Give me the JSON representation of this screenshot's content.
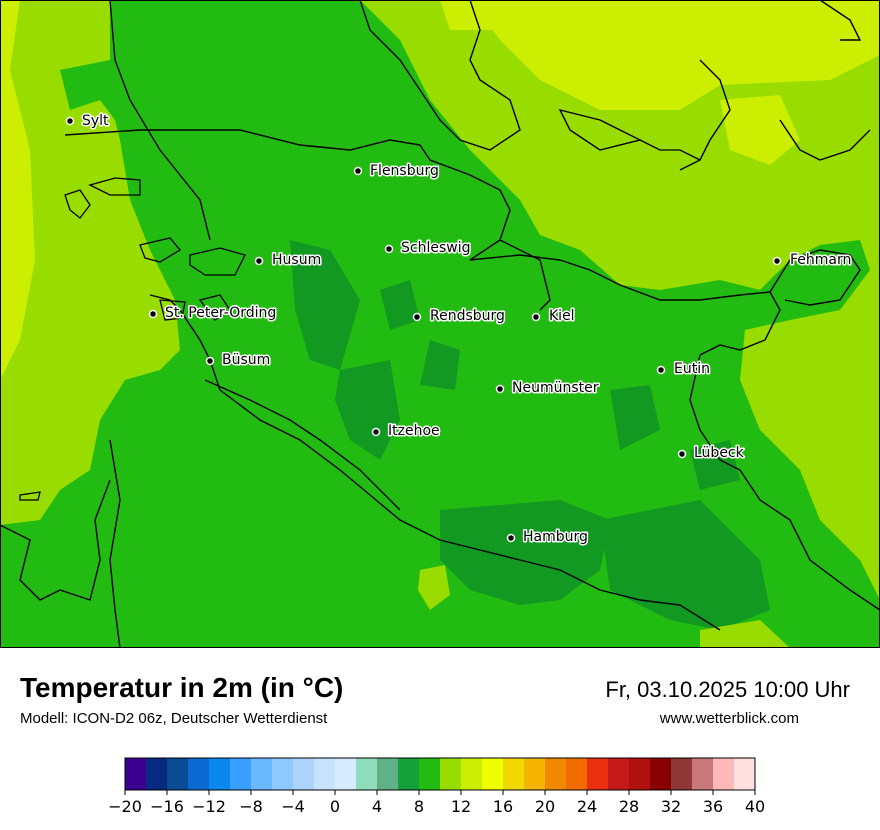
{
  "header": {
    "title": "Temperatur in 2m (in °C)",
    "subtitle": "Modell: ICON-D2 06z, Deutscher Wetterdienst",
    "datetime": "Fr, 03.10.2025 10:00 Uhr",
    "website": "www.wetterblick.com"
  },
  "map": {
    "cities": [
      "Sylt",
      "Flensburg",
      "Schleswig",
      "Husum",
      "Fehmarn",
      "St. Peter-Ording",
      "Rendsburg",
      "Kiel",
      "Büsum",
      "Neumünster",
      "Eutin",
      "Itzehoe",
      "Lübeck",
      "Hamburg"
    ],
    "colors": {
      "sea_yellow": "#ccee00",
      "light_green": "#99dd00",
      "mid_green": "#22bb11",
      "dark_green": "#119922",
      "border": "#000000"
    }
  },
  "color_scale": {
    "ticks": [
      "−20",
      "−16",
      "−12",
      "−8",
      "−4",
      "0",
      "4",
      "8",
      "12",
      "16",
      "20",
      "24",
      "28",
      "32",
      "36",
      "40"
    ],
    "colors": [
      "#3a0090",
      "#07297f",
      "#0a4c94",
      "#0a6ad0",
      "#0a88ee",
      "#3aa0ff",
      "#6ab8ff",
      "#8ec8ff",
      "#acd4ff",
      "#c6e2ff",
      "#d8ecff",
      "#90dcbc",
      "#60b088",
      "#16a03c",
      "#22bb11",
      "#99dd00",
      "#ccee00",
      "#eeff00",
      "#f0d800",
      "#f4b400",
      "#f08800",
      "#f06c00",
      "#e83010",
      "#c41a1a",
      "#b01010",
      "#880000",
      "#903838",
      "#c87878",
      "#ffb8b8",
      "#ffe0e0"
    ]
  }
}
